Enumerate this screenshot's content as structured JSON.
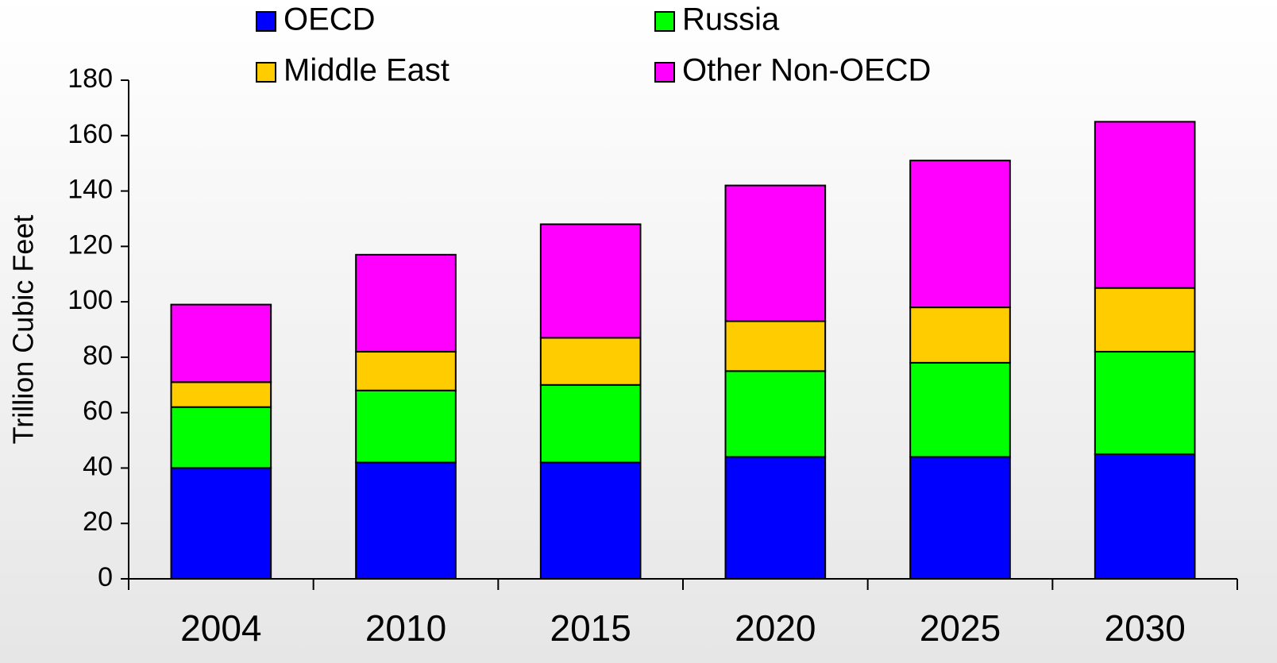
{
  "chart_data": {
    "type": "stacked_bar",
    "y_label": "Trillion Cubic Feet",
    "categories": [
      "2004",
      "2010",
      "2015",
      "2020",
      "2025",
      "2030"
    ],
    "series": [
      {
        "name": "OECD",
        "color": "#0000ff",
        "values": [
          40,
          42,
          42,
          44,
          44,
          45
        ]
      },
      {
        "name": "Russia",
        "color": "#00ff00",
        "values": [
          22,
          26,
          28,
          31,
          34,
          37
        ]
      },
      {
        "name": "Middle East",
        "color": "#ffcc00",
        "values": [
          9,
          14,
          17,
          18,
          20,
          23
        ]
      },
      {
        "name": "Other Non-OECD",
        "color": "#ff00ff",
        "values": [
          28,
          35,
          41,
          49,
          53,
          60
        ]
      }
    ],
    "ylim": [
      0,
      180
    ],
    "yticks": [
      0,
      20,
      40,
      60,
      80,
      100,
      120,
      140,
      160,
      180
    ],
    "grid": false,
    "legend": "top"
  }
}
